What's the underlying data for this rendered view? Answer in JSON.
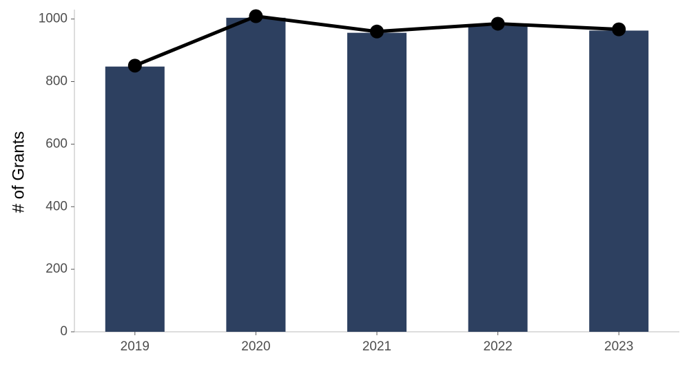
{
  "chart_data": {
    "type": "bar",
    "y_label": "# of Grants",
    "categories": [
      "2019",
      "2020",
      "2021",
      "2022",
      "2023"
    ],
    "series": [
      {
        "type": "bar",
        "color": "#2d4060",
        "values": [
          848,
          1004,
          956,
          978,
          963
        ]
      },
      {
        "type": "line",
        "color": "#000000",
        "values": [
          851,
          1009,
          960,
          985,
          967
        ]
      }
    ],
    "ylim": [
      0,
      1030
    ],
    "yticks": [
      0,
      200,
      400,
      600,
      800,
      1000
    ],
    "grid": false
  }
}
